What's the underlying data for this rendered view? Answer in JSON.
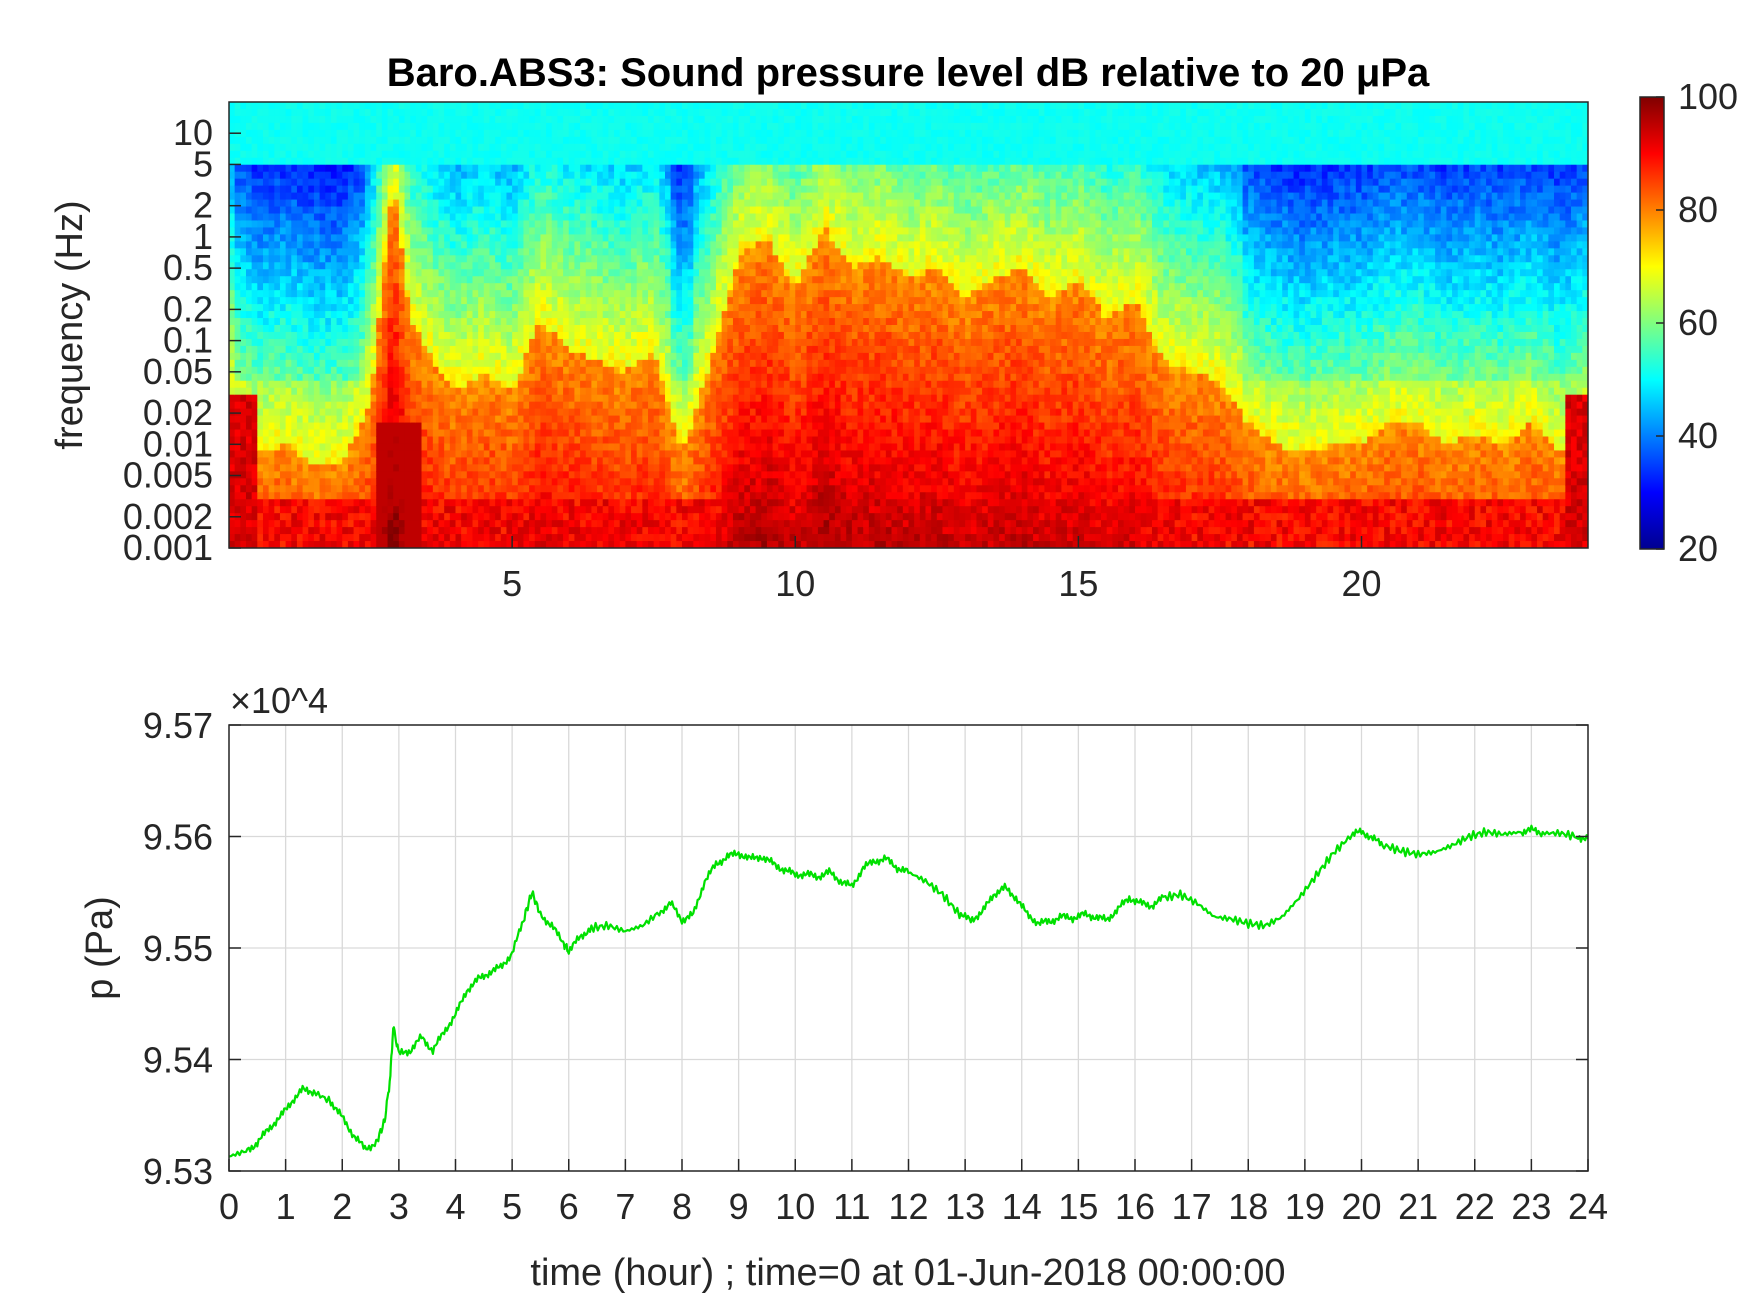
{
  "chart_data": [
    {
      "type": "heatmap",
      "title": "Baro.ABS3: Sound pressure level dB relative to 20 μPa",
      "xlabel": "",
      "ylabel": "frequency (Hz)",
      "x_ticks": [
        5,
        10,
        15,
        20
      ],
      "xlim": [
        0,
        24
      ],
      "y_scale": "log",
      "ylim": [
        0.001,
        20
      ],
      "y_ticks": [
        "10",
        "5",
        "2",
        "1",
        "0.5",
        "0.2",
        "0.1",
        "0.05",
        "0.02",
        "0.01",
        "0.005",
        "0.002",
        "0.001"
      ],
      "y_tick_values": [
        10,
        5,
        2,
        1,
        0.5,
        0.2,
        0.1,
        0.05,
        0.02,
        0.01,
        0.005,
        0.002,
        0.001
      ],
      "colormap": "jet",
      "colorbar": {
        "range": [
          20,
          100
        ],
        "ticks": [
          "100",
          "80",
          "60",
          "40",
          "20"
        ],
        "tick_values": [
          100,
          80,
          60,
          40,
          20
        ]
      },
      "activity_profile": {
        "hours": [
          0,
          0.5,
          1,
          1.5,
          2,
          2.5,
          2.9,
          3.2,
          3.6,
          4,
          4.5,
          5,
          5.5,
          6,
          6.5,
          7,
          7.5,
          8,
          8.5,
          9,
          9.5,
          10,
          10.5,
          11,
          11.5,
          12,
          12.5,
          13,
          13.5,
          14,
          14.5,
          15,
          15.5,
          16,
          16.5,
          17,
          17.5,
          18,
          18.5,
          19,
          19.5,
          20,
          20.5,
          21,
          21.5,
          22,
          22.5,
          23,
          23.5,
          24
        ],
        "upper_edge_log10_hz": [
          -1.6,
          -2.1,
          -2.0,
          -2.2,
          -2.2,
          -1.6,
          0.6,
          -0.8,
          -1.2,
          -1.5,
          -1.3,
          -1.5,
          -0.8,
          -1.1,
          -1.2,
          -1.3,
          -1.1,
          -2.1,
          -1.2,
          -0.2,
          0.0,
          -0.5,
          0.1,
          -0.3,
          -0.2,
          -0.4,
          -0.3,
          -0.6,
          -0.4,
          -0.3,
          -0.6,
          -0.4,
          -0.8,
          -0.6,
          -1.2,
          -1.3,
          -1.4,
          -1.8,
          -2.0,
          -2.1,
          -2.0,
          -2.0,
          -1.8,
          -1.8,
          -2.0,
          -1.9,
          -2.0,
          -1.8,
          -2.1,
          -1.8
        ]
      },
      "grid": false
    },
    {
      "type": "line",
      "title": "",
      "xlabel": "time (hour) ; time=0 at 01-Jun-2018 00:00:00",
      "ylabel": "p (Pa)",
      "y_multiplier": "×10^4",
      "xlim": [
        0,
        24
      ],
      "ylim": [
        9.53,
        9.57
      ],
      "x_ticks": [
        "0",
        "1",
        "2",
        "3",
        "4",
        "5",
        "6",
        "7",
        "8",
        "9",
        "10",
        "11",
        "12",
        "13",
        "14",
        "15",
        "16",
        "17",
        "18",
        "19",
        "20",
        "21",
        "22",
        "23",
        "24"
      ],
      "y_ticks": [
        "9.53",
        "9.54",
        "9.55",
        "9.56",
        "9.57"
      ],
      "y_tick_values": [
        9.53,
        9.54,
        9.55,
        9.56,
        9.57
      ],
      "grid": true,
      "color": "#00e000",
      "series": [
        {
          "x": [
            0,
            0.3,
            0.5,
            0.7,
            0.9,
            1.1,
            1.3,
            1.5,
            1.8,
            2.0,
            2.2,
            2.4,
            2.6,
            2.75,
            2.85,
            2.9,
            3.0,
            3.2,
            3.4,
            3.6,
            3.8,
            4.0,
            4.2,
            4.4,
            4.6,
            4.8,
            5.0,
            5.2,
            5.35,
            5.5,
            5.7,
            5.9,
            6.0,
            6.2,
            6.4,
            6.7,
            7.0,
            7.3,
            7.6,
            7.8,
            8.0,
            8.2,
            8.4,
            8.6,
            8.8,
            9.0,
            9.2,
            9.4,
            9.6,
            9.8,
            10.0,
            10.2,
            10.4,
            10.6,
            10.8,
            11.0,
            11.2,
            11.4,
            11.6,
            11.8,
            12.0,
            12.3,
            12.6,
            12.9,
            13.1,
            13.3,
            13.5,
            13.7,
            13.9,
            14.1,
            14.3,
            14.5,
            14.7,
            14.9,
            15.1,
            15.3,
            15.5,
            15.7,
            15.9,
            16.1,
            16.3,
            16.5,
            16.8,
            17.1,
            17.4,
            17.7,
            18.0,
            18.3,
            18.6,
            18.9,
            19.2,
            19.5,
            19.8,
            20.0,
            20.2,
            20.4,
            20.7,
            21.0,
            21.3,
            21.6,
            21.9,
            22.2,
            22.5,
            22.8,
            23.0,
            23.2,
            23.5,
            23.8,
            24.0
          ],
          "values": [
            9.5313,
            9.5318,
            9.5325,
            9.5338,
            9.5348,
            9.5362,
            9.5373,
            9.5371,
            9.5362,
            9.5348,
            9.5332,
            9.532,
            9.5325,
            9.5345,
            9.5385,
            9.543,
            9.5405,
            9.5408,
            9.542,
            9.5408,
            9.5425,
            9.544,
            9.5462,
            9.5472,
            9.5478,
            9.5483,
            9.5495,
            9.5525,
            9.555,
            9.553,
            9.552,
            9.5505,
            9.5497,
            9.551,
            9.5518,
            9.552,
            9.5515,
            9.552,
            9.5532,
            9.554,
            9.5525,
            9.553,
            9.556,
            9.5575,
            9.5582,
            9.5585,
            9.558,
            9.5582,
            9.5576,
            9.557,
            9.5566,
            9.5566,
            9.5564,
            9.5568,
            9.556,
            9.5555,
            9.5572,
            9.5578,
            9.558,
            9.5572,
            9.5568,
            9.556,
            9.5548,
            9.553,
            9.5525,
            9.5532,
            9.5548,
            9.5554,
            9.5545,
            9.553,
            9.5522,
            9.5524,
            9.5528,
            9.5527,
            9.553,
            9.5528,
            9.5525,
            9.5535,
            9.5545,
            9.554,
            9.5538,
            9.5545,
            9.5548,
            9.554,
            9.5528,
            9.5526,
            9.5522,
            9.552,
            9.5528,
            9.5545,
            9.5565,
            9.5585,
            9.56,
            9.5605,
            9.5598,
            9.5592,
            9.5587,
            9.5584,
            9.5586,
            9.5592,
            9.56,
            9.5604,
            9.5602,
            9.5604,
            9.5606,
            9.5603,
            9.5603,
            9.56,
            9.5598
          ]
        }
      ]
    }
  ]
}
